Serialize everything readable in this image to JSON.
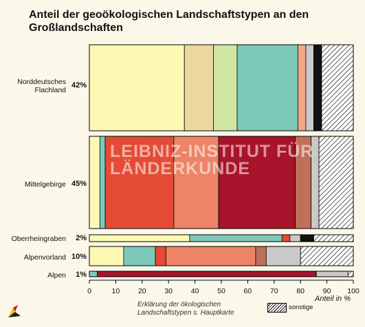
{
  "title": "Anteil der geoökologischen Landschaftstypen an den Großlandschaften",
  "caption": "Erklärung der ökologischen Landschaftstypen s. Hauptkarte",
  "watermark": "LEIBNIZ-INSTITUT FÜR LÄNDERKUNDE",
  "legend": {
    "sonstige_label": "sonstige"
  },
  "chart_data": {
    "type": "bar",
    "orientation": "horizontal",
    "stacked": true,
    "xlabel": "Anteil in %",
    "xlim": [
      0,
      100
    ],
    "xticks": [
      0,
      10,
      20,
      30,
      40,
      50,
      60,
      70,
      80,
      90,
      100
    ],
    "categories": [
      {
        "name": "Norddeutsches Flachland",
        "share": "42%",
        "segments": [
          {
            "value": 36,
            "color": "#fdf9b4"
          },
          {
            "value": 11,
            "color": "#ecd9a0"
          },
          {
            "value": 9,
            "color": "#d2e6a3"
          },
          {
            "value": 23,
            "color": "#7cc9b9"
          },
          {
            "value": 3,
            "color": "#f1a989"
          },
          {
            "value": 3,
            "color": "#c9c9c9"
          },
          {
            "value": 3,
            "color": "#111111"
          },
          {
            "value": 12,
            "color": "hatch"
          }
        ]
      },
      {
        "name": "Mittelgebirge",
        "share": "45%",
        "segments": [
          {
            "value": 4,
            "color": "#fdf9b4"
          },
          {
            "value": 2,
            "color": "#7cc9b9"
          },
          {
            "value": 26,
            "color": "#e34b35"
          },
          {
            "value": 17,
            "color": "#ec8465"
          },
          {
            "value": 29,
            "color": "#a8142b"
          },
          {
            "value": 6,
            "color": "#c07058"
          },
          {
            "value": 3,
            "color": "#c9c9c9"
          },
          {
            "value": 13,
            "color": "hatch"
          }
        ]
      },
      {
        "name": "Oberrheingraben",
        "share": "2%",
        "segments": [
          {
            "value": 38,
            "color": "#fdf9b4"
          },
          {
            "value": 35,
            "color": "#7cc9b9"
          },
          {
            "value": 3,
            "color": "#e34b35"
          },
          {
            "value": 4,
            "color": "#c9c9c9"
          },
          {
            "value": 5,
            "color": "#111111"
          },
          {
            "value": 15,
            "color": "hatch"
          }
        ]
      },
      {
        "name": "Alpenvorland",
        "share": "10%",
        "segments": [
          {
            "value": 13,
            "color": "#fdf9b4"
          },
          {
            "value": 12,
            "color": "#7cc9b9"
          },
          {
            "value": 4,
            "color": "#e34b35"
          },
          {
            "value": 34,
            "color": "#ec8465"
          },
          {
            "value": 4,
            "color": "#c07058"
          },
          {
            "value": 13,
            "color": "#c9c9c9"
          },
          {
            "value": 20,
            "color": "hatch"
          }
        ]
      },
      {
        "name": "Alpen",
        "share": "1%",
        "segments": [
          {
            "value": 3,
            "color": "#7cc9b9"
          },
          {
            "value": 83,
            "color": "#a8142b"
          },
          {
            "value": 12,
            "color": "#c9c9c9"
          },
          {
            "value": 2,
            "color": "hatch"
          }
        ]
      }
    ]
  }
}
